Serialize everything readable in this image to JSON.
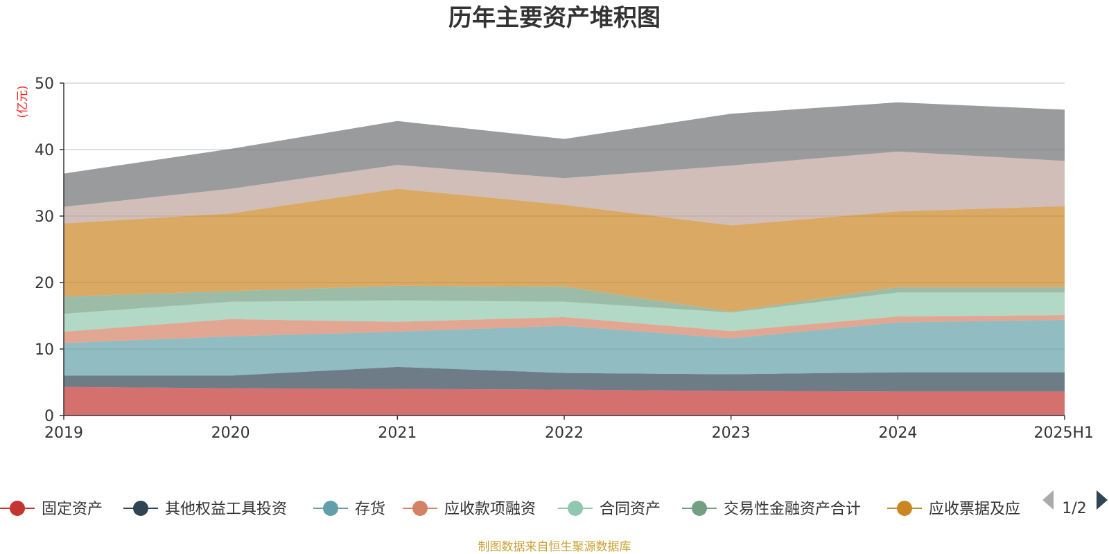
{
  "chart_data": {
    "type": "area",
    "stacked": true,
    "title": "历年主要资产堆积图",
    "unit_label": "(亿元)",
    "x": [
      "2019",
      "2020",
      "2021",
      "2022",
      "2023",
      "2024",
      "2025H1"
    ],
    "ylim": [
      0,
      50
    ],
    "yticks": [
      0,
      10,
      20,
      30,
      40,
      50
    ],
    "grid": true,
    "series": [
      {
        "name": "固定资产",
        "color": "#c23531",
        "values": [
          4.3,
          4.1,
          4.0,
          3.9,
          3.7,
          3.6,
          3.6
        ]
      },
      {
        "name": "其他权益工具投资",
        "color": "#2f4554",
        "values": [
          1.7,
          1.9,
          3.3,
          2.5,
          2.5,
          2.9,
          2.9
        ]
      },
      {
        "name": "存货",
        "color": "#61a0a8",
        "values": [
          4.9,
          5.9,
          5.3,
          7.1,
          5.4,
          7.5,
          7.9
        ]
      },
      {
        "name": "应收款项融资",
        "color": "#d48265",
        "values": [
          1.7,
          2.6,
          1.5,
          1.3,
          1.1,
          0.9,
          0.7
        ]
      },
      {
        "name": "合同资产",
        "color": "#91c7ae",
        "values": [
          2.7,
          2.6,
          3.2,
          2.3,
          2.8,
          3.6,
          3.4
        ]
      },
      {
        "name": "交易性金融资产合计",
        "color": "#749f83",
        "values": [
          2.6,
          1.6,
          2.2,
          2.3,
          0.1,
          0.8,
          0.8
        ]
      },
      {
        "name": "应收票据及应收账款",
        "color": "#ca8622",
        "values": [
          11.0,
          11.7,
          14.6,
          12.3,
          13.0,
          11.4,
          12.2
        ]
      },
      {
        "name": "",
        "color": "#bda29a",
        "values": [
          2.5,
          3.7,
          3.6,
          4.0,
          9.0,
          9.0,
          6.8
        ]
      },
      {
        "name": "",
        "color": "#6e7074",
        "values": [
          5.0,
          6.0,
          6.6,
          5.9,
          7.8,
          7.4,
          7.7
        ]
      }
    ],
    "legend_position": "bottom",
    "legend_visible": [
      "固定资产",
      "其他权益工具投资",
      "存货",
      "应收款项融资",
      "合同资产",
      "交易性金融资产合计",
      "应收票据及应"
    ],
    "legend_page": "1/2",
    "source_note": "制图数据来自恒生聚源数据库"
  },
  "legend_nav": {
    "prev_icon": "triangle-left-icon",
    "next_icon": "triangle-right-icon",
    "prev_color": "#aaaaaa",
    "next_color": "#2f4554"
  }
}
